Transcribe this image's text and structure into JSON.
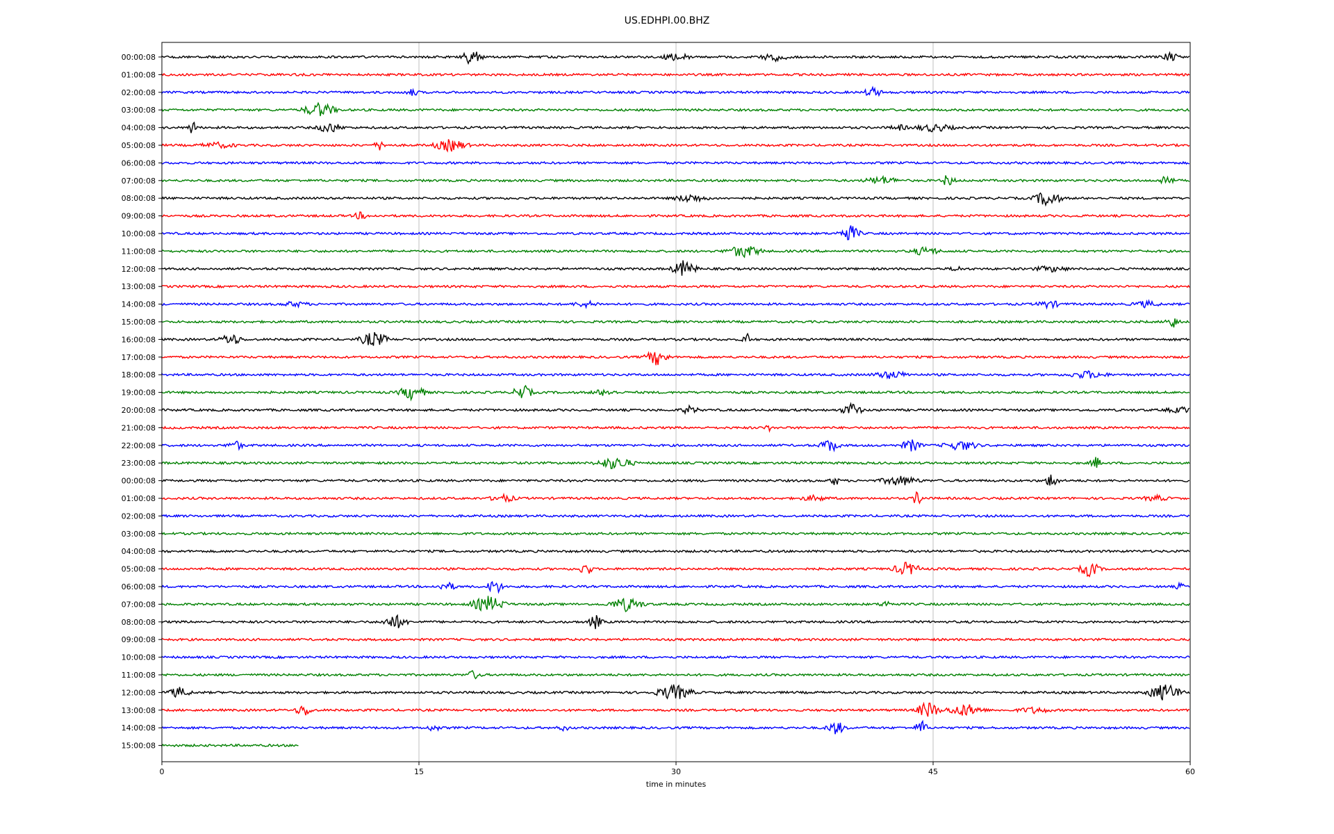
{
  "chart_data": {
    "type": "line",
    "title": "US.EDHPI.00.BHZ",
    "xlabel": "time in minutes",
    "ylabel": "",
    "xlim": [
      0,
      60
    ],
    "xticks": [
      "0",
      "15",
      "30",
      "45",
      "60"
    ],
    "grid": "vertical",
    "row_labels": [
      "00:00:08",
      "01:00:08",
      "02:00:08",
      "03:00:08",
      "04:00:08",
      "05:00:08",
      "06:00:08",
      "07:00:08",
      "08:00:08",
      "09:00:08",
      "10:00:08",
      "11:00:08",
      "12:00:08",
      "13:00:08",
      "14:00:08",
      "15:00:08",
      "16:00:08",
      "17:00:08",
      "18:00:08",
      "19:00:08",
      "20:00:08",
      "21:00:08",
      "22:00:08",
      "23:00:08",
      "00:00:08",
      "01:00:08",
      "02:00:08",
      "03:00:08",
      "04:00:08",
      "05:00:08",
      "06:00:08",
      "07:00:08",
      "08:00:08",
      "09:00:08",
      "10:00:08",
      "11:00:08",
      "12:00:08",
      "13:00:08",
      "14:00:08",
      "15:00:08"
    ],
    "row_colors": [
      "#000000",
      "#ff0000",
      "#0000ff",
      "#008000"
    ],
    "last_row_end_minute": 8
  }
}
